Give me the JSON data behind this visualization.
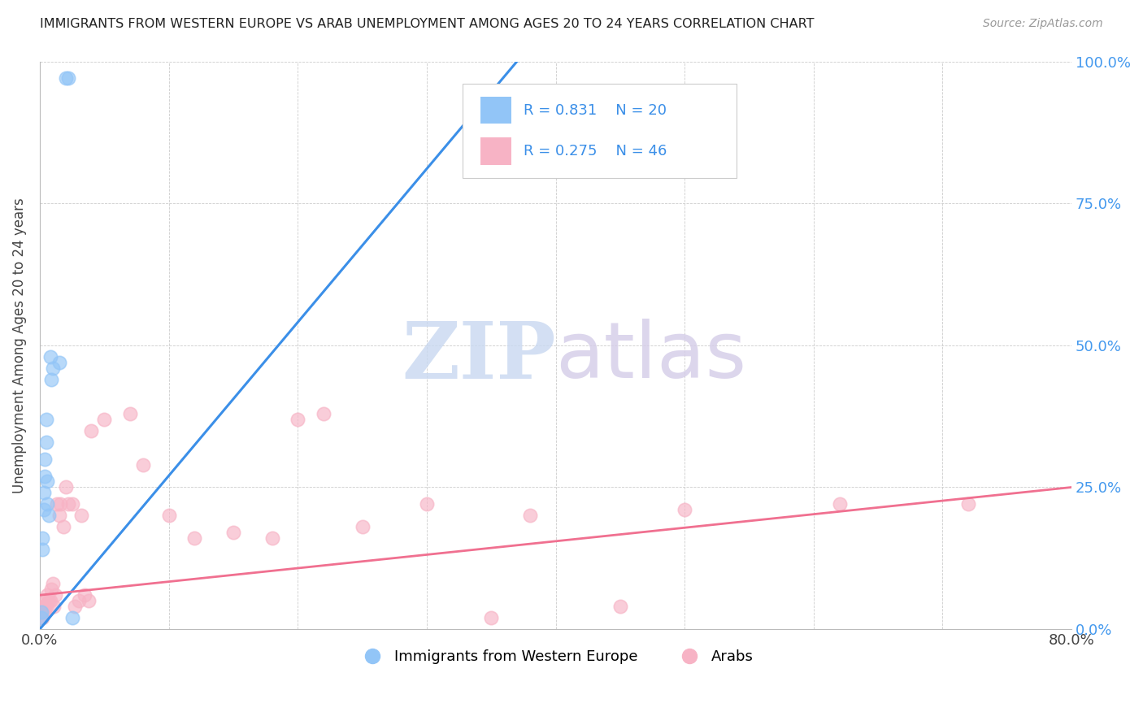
{
  "title": "IMMIGRANTS FROM WESTERN EUROPE VS ARAB UNEMPLOYMENT AMONG AGES 20 TO 24 YEARS CORRELATION CHART",
  "source": "Source: ZipAtlas.com",
  "ylabel": "Unemployment Among Ages 20 to 24 years",
  "xlim": [
    0.0,
    0.8
  ],
  "ylim": [
    0.0,
    1.0
  ],
  "y_ticks_right": [
    0.0,
    0.25,
    0.5,
    0.75,
    1.0
  ],
  "y_tick_labels_right": [
    "0.0%",
    "25.0%",
    "50.0%",
    "75.0%",
    "100.0%"
  ],
  "legend_r1": "0.831",
  "legend_n1": "20",
  "legend_r2": "0.275",
  "legend_n2": "46",
  "legend_label1": "Immigrants from Western Europe",
  "legend_label2": "Arabs",
  "blue_color": "#92c5f7",
  "pink_color": "#f7b3c5",
  "blue_line_color": "#3b8fe8",
  "pink_line_color": "#f07090",
  "watermark_zip_color": "#c8d8f0",
  "watermark_atlas_color": "#d4cce8",
  "blue_scatter_x": [
    0.001,
    0.001,
    0.002,
    0.002,
    0.003,
    0.003,
    0.004,
    0.004,
    0.005,
    0.005,
    0.006,
    0.006,
    0.007,
    0.008,
    0.009,
    0.01,
    0.015,
    0.02,
    0.022,
    0.025
  ],
  "blue_scatter_y": [
    0.02,
    0.03,
    0.14,
    0.16,
    0.21,
    0.24,
    0.27,
    0.3,
    0.33,
    0.37,
    0.22,
    0.26,
    0.2,
    0.48,
    0.44,
    0.46,
    0.47,
    0.97,
    0.97,
    0.02
  ],
  "pink_scatter_x": [
    0.001,
    0.001,
    0.002,
    0.002,
    0.003,
    0.003,
    0.004,
    0.004,
    0.005,
    0.006,
    0.007,
    0.008,
    0.009,
    0.01,
    0.011,
    0.012,
    0.013,
    0.015,
    0.016,
    0.018,
    0.02,
    0.022,
    0.025,
    0.027,
    0.03,
    0.032,
    0.035,
    0.038,
    0.04,
    0.05,
    0.07,
    0.08,
    0.1,
    0.12,
    0.15,
    0.18,
    0.2,
    0.22,
    0.25,
    0.3,
    0.35,
    0.38,
    0.45,
    0.5,
    0.62,
    0.72
  ],
  "pink_scatter_y": [
    0.02,
    0.03,
    0.02,
    0.04,
    0.03,
    0.05,
    0.04,
    0.03,
    0.04,
    0.06,
    0.05,
    0.05,
    0.07,
    0.08,
    0.04,
    0.06,
    0.22,
    0.2,
    0.22,
    0.18,
    0.25,
    0.22,
    0.22,
    0.04,
    0.05,
    0.2,
    0.06,
    0.05,
    0.35,
    0.37,
    0.38,
    0.29,
    0.2,
    0.16,
    0.17,
    0.16,
    0.37,
    0.38,
    0.18,
    0.22,
    0.02,
    0.2,
    0.04,
    0.21,
    0.22,
    0.22
  ],
  "blue_trend_x": [
    0.0,
    0.37
  ],
  "blue_trend_y": [
    0.0,
    1.0
  ],
  "pink_trend_x": [
    0.0,
    0.8
  ],
  "pink_trend_y": [
    0.06,
    0.25
  ]
}
